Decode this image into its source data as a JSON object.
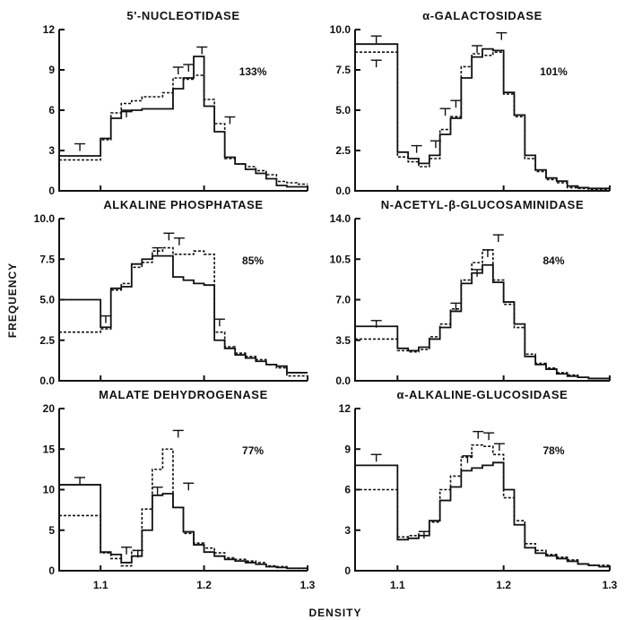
{
  "figure": {
    "xlabel": "DENSITY",
    "ylabel": "FREQUENCY",
    "x_ticks": [
      "1.1",
      "1.2",
      "1.3"
    ]
  },
  "chart_data": [
    {
      "type": "line",
      "title": "5'-NUCLEOTIDASE",
      "annotation": "133%",
      "xlim": [
        1.06,
        1.3
      ],
      "ylim": [
        0,
        12
      ],
      "y_ticks": [
        "0",
        "3",
        "6",
        "9",
        "12"
      ],
      "bin_edges": [
        1.06,
        1.1,
        1.11,
        1.12,
        1.13,
        1.14,
        1.15,
        1.16,
        1.17,
        1.18,
        1.19,
        1.2,
        1.21,
        1.22,
        1.23,
        1.24,
        1.25,
        1.26,
        1.27,
        1.28,
        1.29,
        1.3
      ],
      "series": [
        {
          "style": "solid",
          "values": [
            2.6,
            3.9,
            5.4,
            5.9,
            6.0,
            6.1,
            6.1,
            6.1,
            7.6,
            8.4,
            10.0,
            6.3,
            4.4,
            2.5,
            2.0,
            1.6,
            1.3,
            0.9,
            0.4,
            0.3,
            0.3
          ]
        },
        {
          "style": "dashed",
          "values": [
            2.3,
            3.8,
            5.8,
            6.5,
            6.7,
            7.0,
            7.0,
            7.3,
            8.4,
            8.3,
            8.6,
            6.8,
            5.0,
            2.4,
            2.0,
            1.8,
            1.5,
            1.2,
            0.7,
            0.6,
            0.5
          ]
        }
      ],
      "error_bars": [
        {
          "x": 1.08,
          "y": 3.5
        },
        {
          "x": 1.125,
          "y": 6.0
        },
        {
          "x": 1.175,
          "y": 9.2
        },
        {
          "x": 1.185,
          "y": 9.4
        },
        {
          "x": 1.198,
          "y": 10.7
        },
        {
          "x": 1.225,
          "y": 5.5
        }
      ]
    },
    {
      "type": "line",
      "title": "α-GALACTOSIDASE",
      "annotation": "101%",
      "xlim": [
        1.06,
        1.3
      ],
      "ylim": [
        0,
        10
      ],
      "y_ticks": [
        "0.0",
        "2.5",
        "5.0",
        "7.5",
        "10.0"
      ],
      "bin_edges": [
        1.06,
        1.1,
        1.11,
        1.12,
        1.13,
        1.14,
        1.15,
        1.16,
        1.17,
        1.18,
        1.19,
        1.2,
        1.21,
        1.22,
        1.23,
        1.24,
        1.25,
        1.26,
        1.27,
        1.28,
        1.29,
        1.3
      ],
      "series": [
        {
          "style": "solid",
          "values": [
            9.1,
            2.4,
            2.0,
            1.7,
            2.2,
            3.5,
            4.5,
            7.0,
            8.3,
            8.8,
            8.7,
            6.1,
            4.7,
            2.2,
            1.3,
            0.8,
            0.6,
            0.3,
            0.2,
            0.15,
            0.15
          ]
        },
        {
          "style": "dashed",
          "values": [
            8.6,
            2.1,
            1.8,
            1.5,
            2.0,
            3.8,
            4.6,
            7.7,
            8.5,
            8.4,
            8.6,
            6.0,
            4.6,
            2.0,
            1.2,
            0.7,
            0.5,
            0.2,
            0.15,
            0.1,
            0.1
          ]
        }
      ],
      "error_bars": [
        {
          "x": 1.08,
          "y": 9.6
        },
        {
          "x": 1.08,
          "y": 8.1
        },
        {
          "x": 1.118,
          "y": 2.8
        },
        {
          "x": 1.136,
          "y": 3.1
        },
        {
          "x": 1.145,
          "y": 5.1
        },
        {
          "x": 1.155,
          "y": 5.6
        },
        {
          "x": 1.175,
          "y": 9.0
        },
        {
          "x": 1.198,
          "y": 9.8
        }
      ]
    },
    {
      "type": "line",
      "title": "ALKALINE PHOSPHATASE",
      "annotation": "85%",
      "xlim": [
        1.06,
        1.3
      ],
      "ylim": [
        0,
        10
      ],
      "y_ticks": [
        "0.0",
        "2.5",
        "5.0",
        "7.5",
        "10.0"
      ],
      "bin_edges": [
        1.06,
        1.1,
        1.11,
        1.12,
        1.13,
        1.14,
        1.15,
        1.16,
        1.17,
        1.18,
        1.19,
        1.2,
        1.21,
        1.22,
        1.23,
        1.24,
        1.25,
        1.26,
        1.27,
        1.28,
        1.29,
        1.3
      ],
      "series": [
        {
          "style": "solid",
          "values": [
            5.0,
            3.3,
            5.7,
            5.8,
            7.2,
            7.5,
            7.7,
            7.7,
            6.4,
            6.2,
            6.0,
            5.9,
            2.5,
            2.0,
            1.6,
            1.4,
            1.2,
            1.0,
            0.9,
            0.5,
            0.5
          ]
        },
        {
          "style": "dashed",
          "values": [
            3.0,
            3.2,
            5.6,
            6.0,
            7.0,
            7.3,
            8.0,
            8.2,
            7.8,
            7.8,
            8.0,
            7.8,
            3.0,
            2.1,
            1.7,
            1.5,
            1.3,
            1.0,
            0.8,
            0.3,
            0.3
          ]
        }
      ],
      "error_bars": [
        {
          "x": 1.105,
          "y": 4.0
        },
        {
          "x": 1.155,
          "y": 8.2
        },
        {
          "x": 1.166,
          "y": 9.1
        },
        {
          "x": 1.176,
          "y": 8.8
        },
        {
          "x": 1.215,
          "y": 3.8
        }
      ]
    },
    {
      "type": "line",
      "title": "N-ACETYL-β-GLUCOSAMINIDASE",
      "annotation": "84%",
      "xlim": [
        1.06,
        1.3
      ],
      "ylim": [
        0,
        14
      ],
      "y_ticks": [
        "0.0",
        "3.5",
        "7.0",
        "10.5",
        "14.0"
      ],
      "bin_edges": [
        1.06,
        1.1,
        1.11,
        1.12,
        1.13,
        1.14,
        1.15,
        1.16,
        1.17,
        1.18,
        1.19,
        1.2,
        1.21,
        1.22,
        1.23,
        1.24,
        1.25,
        1.26,
        1.27,
        1.28,
        1.29,
        1.3
      ],
      "series": [
        {
          "style": "solid",
          "values": [
            4.7,
            2.8,
            2.6,
            2.9,
            3.6,
            4.6,
            6.0,
            8.4,
            9.3,
            10.0,
            8.5,
            6.8,
            4.9,
            2.1,
            1.4,
            1.0,
            0.6,
            0.4,
            0.3,
            0.2,
            0.2
          ]
        },
        {
          "style": "dashed",
          "values": [
            3.6,
            2.6,
            2.5,
            2.7,
            3.8,
            4.9,
            6.2,
            8.7,
            10.2,
            11.3,
            8.7,
            6.6,
            4.6,
            2.3,
            1.5,
            1.1,
            0.7,
            0.5,
            0.3,
            0.2,
            0.2
          ]
        }
      ],
      "error_bars": [
        {
          "x": 1.08,
          "y": 5.2
        },
        {
          "x": 1.155,
          "y": 6.7
        },
        {
          "x": 1.175,
          "y": 9.6
        },
        {
          "x": 1.185,
          "y": 11.3
        },
        {
          "x": 1.195,
          "y": 12.6
        }
      ]
    },
    {
      "type": "line",
      "title": "MALATE DEHYDROGENASE",
      "annotation": "77%",
      "xlim": [
        1.06,
        1.3
      ],
      "ylim": [
        0,
        20
      ],
      "y_ticks": [
        "0",
        "5",
        "10",
        "15",
        "20"
      ],
      "bin_edges": [
        1.06,
        1.1,
        1.11,
        1.12,
        1.13,
        1.14,
        1.15,
        1.16,
        1.17,
        1.18,
        1.19,
        1.2,
        1.21,
        1.22,
        1.23,
        1.24,
        1.25,
        1.26,
        1.27,
        1.28,
        1.29,
        1.3
      ],
      "series": [
        {
          "style": "solid",
          "values": [
            10.6,
            2.3,
            2.0,
            1.0,
            1.8,
            5.0,
            9.3,
            9.5,
            7.8,
            4.8,
            3.2,
            2.3,
            1.8,
            1.4,
            1.2,
            1.0,
            0.8,
            0.5,
            0.4,
            0.3,
            0.3
          ]
        },
        {
          "style": "dashed",
          "values": [
            6.8,
            2.2,
            1.5,
            0.6,
            2.5,
            7.6,
            12.5,
            15.0,
            7.8,
            4.6,
            3.4,
            2.8,
            2.2,
            1.6,
            1.4,
            1.2,
            1.0,
            0.6,
            0.5,
            0.3,
            0.3
          ]
        }
      ],
      "error_bars": [
        {
          "x": 1.08,
          "y": 11.5
        },
        {
          "x": 1.125,
          "y": 2.9
        },
        {
          "x": 1.136,
          "y": 2.5
        },
        {
          "x": 1.155,
          "y": 10.3
        },
        {
          "x": 1.175,
          "y": 17.3
        },
        {
          "x": 1.185,
          "y": 10.8
        }
      ]
    },
    {
      "type": "line",
      "title": "α-ALKALINE-GLUCOSIDASE",
      "annotation": "78%",
      "xlim": [
        1.06,
        1.3
      ],
      "ylim": [
        0,
        12
      ],
      "y_ticks": [
        "0",
        "3",
        "6",
        "9",
        "12"
      ],
      "bin_edges": [
        1.06,
        1.1,
        1.11,
        1.12,
        1.13,
        1.14,
        1.15,
        1.16,
        1.17,
        1.18,
        1.19,
        1.2,
        1.21,
        1.22,
        1.23,
        1.24,
        1.25,
        1.26,
        1.27,
        1.28,
        1.29,
        1.3
      ],
      "series": [
        {
          "style": "solid",
          "values": [
            7.8,
            2.3,
            2.4,
            2.6,
            3.7,
            5.2,
            6.2,
            7.4,
            7.6,
            7.8,
            8.0,
            6.0,
            3.4,
            1.7,
            1.3,
            1.1,
            0.9,
            0.7,
            0.5,
            0.4,
            0.3
          ]
        },
        {
          "style": "dashed",
          "values": [
            6.0,
            2.5,
            2.6,
            2.9,
            3.6,
            6.0,
            7.0,
            8.4,
            9.3,
            9.2,
            8.6,
            5.4,
            3.7,
            2.0,
            1.5,
            1.2,
            1.0,
            0.8,
            0.5,
            0.4,
            0.4
          ]
        }
      ],
      "error_bars": [
        {
          "x": 1.08,
          "y": 8.6
        },
        {
          "x": 1.125,
          "y": 2.9
        },
        {
          "x": 1.166,
          "y": 8.5
        },
        {
          "x": 1.176,
          "y": 10.3
        },
        {
          "x": 1.186,
          "y": 10.2
        },
        {
          "x": 1.196,
          "y": 9.4
        }
      ]
    }
  ]
}
